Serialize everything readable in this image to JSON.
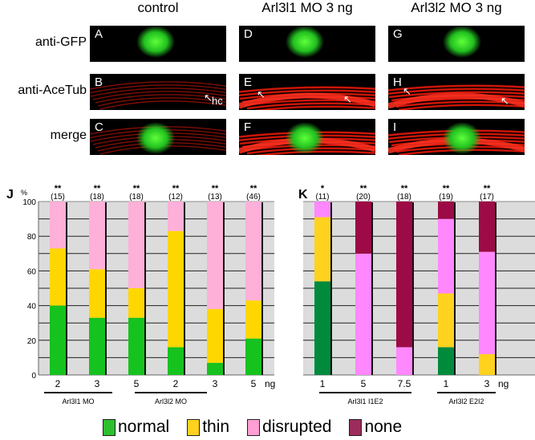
{
  "columns": [
    "control",
    "Arl3l1 MO 3 ng",
    "Arl3l2 MO 3 ng"
  ],
  "rows": [
    "anti-GFP",
    "anti-AceTub",
    "merge"
  ],
  "panel_letters": [
    [
      "A",
      "D",
      "G"
    ],
    [
      "B",
      "E",
      "H"
    ],
    [
      "C",
      "F",
      "I"
    ]
  ],
  "hc_label": "hc",
  "colors": {
    "normal": "#16c21e",
    "thin": "#ffd700",
    "disrupted": "#ffb0d8",
    "none": "#9c0b45",
    "normal_k": "#008a3c",
    "thin_k": "#ffd21e",
    "disrupted_k": "#ff88ff"
  },
  "legend": [
    {
      "key": "normal",
      "label": "normal",
      "color": "#2dbf2d"
    },
    {
      "key": "thin",
      "label": "thin",
      "color": "#ffd21e"
    },
    {
      "key": "disrupted",
      "label": "disrupted",
      "color": "#ff9fd4"
    },
    {
      "key": "none",
      "label": "none",
      "color": "#9c2c5c"
    }
  ],
  "chart_data": [
    {
      "panel": "J",
      "type": "bar",
      "stacked": true,
      "ylabel": "%",
      "ylim": [
        0,
        100
      ],
      "yticks": [
        0,
        20,
        40,
        60,
        80,
        100
      ],
      "unit": "ng",
      "categories": [
        "2",
        "3",
        "5",
        "2",
        "3",
        "5"
      ],
      "groups": [
        {
          "label": "Arl3l1 MO",
          "span": [
            0,
            2
          ]
        },
        {
          "label": "Arl3l2 MO",
          "span": [
            3,
            5
          ]
        }
      ],
      "significance": [
        "**",
        "**",
        "**",
        "**",
        "**",
        "**"
      ],
      "n": [
        "(15)",
        "(18)",
        "(18)",
        "(12)",
        "(13)",
        "(46)"
      ],
      "series": [
        {
          "name": "normal",
          "values": [
            40,
            33,
            33,
            16,
            7,
            21
          ]
        },
        {
          "name": "thin",
          "values": [
            33,
            28,
            17,
            67,
            31,
            22
          ]
        },
        {
          "name": "disrupted",
          "values": [
            27,
            39,
            50,
            17,
            62,
            57
          ]
        },
        {
          "name": "none",
          "values": [
            0,
            0,
            0,
            0,
            0,
            0
          ]
        }
      ]
    },
    {
      "panel": "K",
      "type": "bar",
      "stacked": true,
      "ylim": [
        0,
        100
      ],
      "unit": "ng",
      "categories": [
        "1",
        "5",
        "7.5",
        "1",
        "3"
      ],
      "groups": [
        {
          "label": "Arl3l1 I1E2",
          "span": [
            0,
            2
          ]
        },
        {
          "label": "Arl3l2 E2I2",
          "span": [
            3,
            4
          ]
        }
      ],
      "significance": [
        "*",
        "**",
        "**",
        "**",
        "**"
      ],
      "n": [
        "(11)",
        "(20)",
        "(18)",
        "(19)",
        "(17)"
      ],
      "series": [
        {
          "name": "normal",
          "values": [
            54,
            0,
            0,
            16,
            0
          ]
        },
        {
          "name": "thin",
          "values": [
            37,
            0,
            0,
            31,
            12
          ]
        },
        {
          "name": "disrupted",
          "values": [
            9,
            70,
            16,
            43,
            59
          ]
        },
        {
          "name": "none",
          "values": [
            0,
            30,
            84,
            10,
            29
          ]
        }
      ]
    }
  ]
}
